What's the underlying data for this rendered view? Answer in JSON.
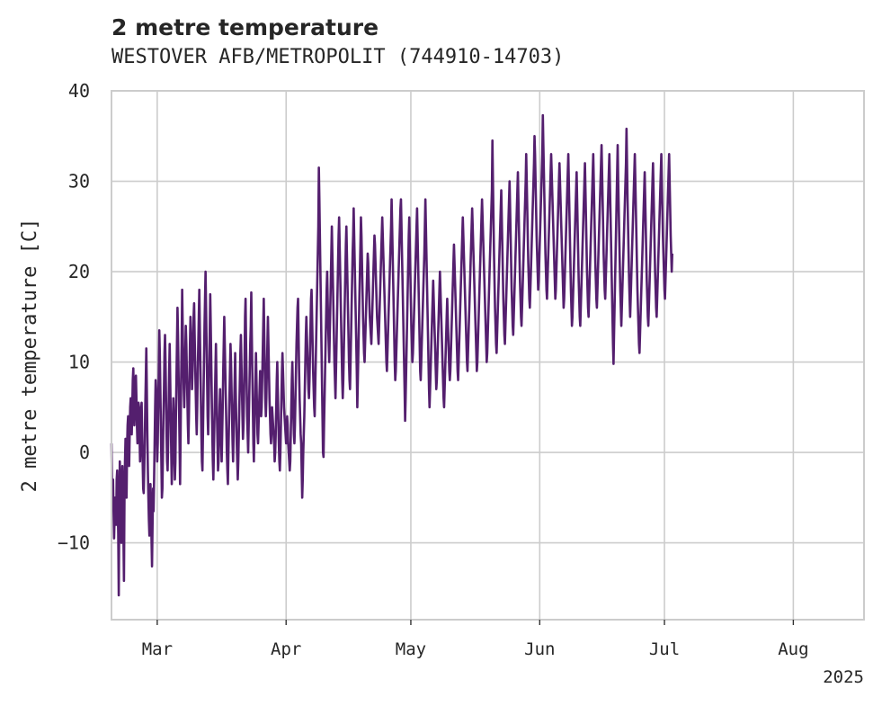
{
  "chart_data": {
    "type": "line",
    "title": "2 metre temperature",
    "subtitle": "WESTOVER AFB/METROPOLIT (744910-14703)",
    "xlabel": "",
    "ylabel": "2 metre temperature [C]",
    "x_start": "2025-02-18",
    "x_end": "2025-08-18",
    "xlim": [
      "2025-02-18",
      "2025-08-18"
    ],
    "ylim": [
      -18.5,
      40
    ],
    "y_ticks": [
      -10,
      0,
      10,
      20,
      30,
      40
    ],
    "x_ticks": [
      {
        "label": "Mar",
        "date": "2025-03-01"
      },
      {
        "label": "Apr",
        "date": "2025-04-01"
      },
      {
        "label": "May",
        "date": "2025-05-01"
      },
      {
        "label": "Jun",
        "date": "2025-06-01"
      },
      {
        "label": "Jul",
        "date": "2025-07-01"
      },
      {
        "label": "Aug",
        "date": "2025-08-01"
      }
    ],
    "x_offset_label": "2025",
    "grid": true,
    "line_color": "#541f6e",
    "grid_color": "#cccccc",
    "series": [
      {
        "name": "",
        "x_step_hours": 3,
        "values": [
          1.0,
          -3.5,
          -4.5,
          -3.0,
          -6.5,
          -9.5,
          -7.0,
          -5.0,
          -6.5,
          -8.0,
          -3.0,
          -2.0,
          -6.0,
          -9.0,
          -15.8,
          -6.0,
          -1.0,
          -4.0,
          -8.0,
          -10.0,
          -3.5,
          -1.5,
          -4.0,
          -9.0,
          -14.2,
          -5.0,
          -1.0,
          1.5,
          -2.0,
          -5.0,
          0.5,
          3.0,
          4.0,
          1.0,
          -1.5,
          2.0,
          5.0,
          6.0,
          4.0,
          2.0,
          5.0,
          8.0,
          9.3,
          6.0,
          3.0,
          5.0,
          8.0,
          8.5,
          6.0,
          3.0,
          1.0,
          3.0,
          5.5,
          5.0,
          2.0,
          -1.0,
          1.0,
          4.5,
          5.5,
          2.0,
          -1.0,
          -4.0,
          -4.5,
          -2.0,
          1.0,
          5.0,
          8.0,
          11.5,
          7.0,
          2.0,
          -2.0,
          -5.0,
          -7.5,
          -9.2,
          -7.0,
          -3.5,
          -6.0,
          -9.5,
          -12.6,
          -8.0,
          -4.0,
          -6.5,
          -3.0,
          1.0,
          5.0,
          8.0,
          7.0,
          3.0,
          -1.0,
          1.0,
          5.0,
          9.0,
          13.5,
          11.0,
          7.0,
          3.0,
          -1.0,
          -5.0,
          -4.0,
          0.0,
          4.0,
          7.0,
          11.0,
          13.0,
          10.0,
          6.0,
          2.0,
          -1.0,
          -2.0,
          1.0,
          5.0,
          9.0,
          12.0,
          8.0,
          4.0,
          0.0,
          -3.5,
          -1.0,
          3.0,
          6.0,
          4.0,
          0.0,
          -3.0,
          -1.0,
          4.0,
          8.0,
          12.0,
          16.0,
          13.0,
          9.0,
          5.0,
          1.0,
          -3.5,
          2.0,
          8.0,
          12.0,
          18.0,
          14.0,
          10.0,
          7.0,
          5.0,
          8.0,
          11.0,
          14.0,
          12.0,
          9.0,
          6.0,
          3.0,
          1.0,
          4.0,
          8.0,
          12.0,
          15.0,
          13.0,
          10.0,
          7.0,
          9.0,
          12.0,
          15.0,
          16.5,
          13.0,
          10.0,
          7.0,
          4.0,
          2.0,
          5.0,
          9.0,
          12.0,
          15.0,
          18.0,
          14.0,
          10.0,
          6.0,
          2.0,
          -1.0,
          -2.0,
          2.0,
          6.0,
          10.0,
          14.0,
          17.0,
          20.0,
          16.0,
          12.0,
          8.0,
          4.0,
          2.0,
          5.0,
          9.0,
          13.0,
          17.5,
          14.0,
          10.0,
          6.0,
          2.0,
          -1.0,
          -3.0,
          0.0,
          3.0,
          6.0,
          9.0,
          12.0,
          8.0,
          4.0,
          1.0,
          -2.0,
          -1.0,
          2.0,
          5.0,
          7.0,
          4.0,
          1.0,
          -1.0,
          2.0,
          5.0,
          9.0,
          12.0,
          15.0,
          12.0,
          9.0,
          6.0,
          3.0,
          0.0,
          -2.0,
          -3.5,
          0.0,
          3.0,
          6.0,
          9.0,
          12.0,
          10.0,
          7.0,
          4.0,
          1.0,
          -1.0,
          2.0,
          5.0,
          8.0,
          11.0,
          7.0,
          4.0,
          1.0,
          -1.0,
          -3.0,
          -1.0,
          2.0,
          5.0,
          8.0,
          11.0,
          13.0,
          10.0,
          7.0,
          4.0,
          1.5,
          3.0,
          6.0,
          10.0,
          15.0,
          17.0,
          12.0,
          8.0,
          4.0,
          2.0,
          0.0,
          3.0,
          6.0,
          9.0,
          12.0,
          14.0,
          17.7,
          13.0,
          9.0,
          5.0,
          1.0,
          -1.0,
          2.0,
          5.0,
          8.0,
          11.0,
          8.0,
          5.0,
          2.0,
          1.0,
          3.0,
          5.0,
          7.0,
          9.0,
          6.0,
          4.0,
          5.0,
          8.0,
          11.0,
          14.0,
          17.0,
          13.0,
          9.0,
          6.0,
          4.0,
          6.0,
          9.0,
          12.0,
          15.0,
          12.0,
          9.0,
          6.0,
          4.0,
          2.0,
          1.0,
          3.0,
          5.0,
          4.0,
          3.0,
          2.0,
          1.0,
          -1.0,
          0.0,
          2.0,
          5.0,
          8.0,
          10.0,
          7.0,
          4.0,
          1.0,
          -1.0,
          -2.0,
          0.0,
          3.0,
          6.0,
          9.0,
          11.0,
          9.0,
          7.0,
          5.0,
          4.0,
          3.0,
          2.0,
          1.0,
          2.0,
          4.0,
          3.0,
          1.0,
          0.0,
          -1.0,
          -2.0,
          -1.0,
          2.0,
          5.0,
          8.0,
          10.0,
          7.0,
          4.0,
          2.0,
          1.0,
          3.0,
          6.0,
          9.0,
          12.0,
          14.0,
          16.0,
          17.0,
          13.0,
          9.0,
          6.0,
          4.0,
          2.0,
          1.0,
          -2.0,
          -5.0,
          -3.0,
          0.0,
          2.0,
          4.0,
          7.0,
          10.0,
          13.0,
          15.0,
          13.0,
          11.0,
          9.0,
          7.0,
          6.0,
          8.0,
          11.0,
          14.0,
          17.0,
          18.0,
          15.0,
          12.0,
          9.0,
          7.0,
          5.0,
          4.0,
          7.0,
          10.0,
          13.0,
          16.0,
          19.0,
          22.0,
          25.0,
          31.5,
          28.0,
          24.0,
          20.0,
          16.0,
          12.0,
          8.0,
          4.0,
          0.0,
          -0.5,
          3.0,
          6.0,
          9.0,
          12.0,
          15.0,
          18.0,
          20.0,
          17.0,
          14.0,
          12.0,
          10.0,
          13.0,
          16.0,
          19.0,
          22.0,
          25.0,
          22.0,
          19.0,
          16.0,
          13.0,
          10.0,
          8.0,
          6.0,
          9.0,
          12.0,
          15.0,
          18.0,
          21.0,
          24.0,
          26.0,
          23.0,
          20.0,
          17.0,
          14.0,
          11.0,
          8.0,
          6.0,
          8.0,
          11.0,
          14.0,
          17.0,
          20.0,
          23.0,
          25.0,
          22.0,
          19.0,
          16.0,
          13.0,
          10.0,
          8.0,
          7.0,
          10.0,
          13.0,
          16.0,
          19.0,
          22.0,
          24.0,
          27.0,
          24.0,
          21.0,
          18.0,
          15.0,
          12.0,
          9.0,
          5.0,
          8.0,
          11.0,
          14.0,
          17.0,
          20.0,
          23.0,
          26.0,
          24.0,
          21.0,
          18.0,
          15.0,
          13.0,
          11.0,
          10.0,
          12.0,
          14.0,
          16.0,
          18.0,
          20.0,
          22.0,
          21.0,
          19.0,
          17.0,
          15.0,
          14.0,
          13.0,
          12.0,
          14.0,
          16.0,
          18.0,
          20.0,
          22.0,
          24.0,
          23.0,
          21.0,
          19.0,
          17.0,
          15.0,
          14.0,
          13.0,
          12.0,
          14.0,
          16.0,
          18.0,
          20.0,
          22.0,
          24.0,
          26.0,
          24.0,
          22.0,
          20.0,
          18.0,
          16.0,
          14.0,
          12.0,
          10.0,
          9.0,
          11.0,
          13.0,
          15.0,
          17.0,
          19.0,
          21.0,
          23.0,
          25.0,
          28.0,
          25.0,
          22.0,
          19.0,
          16.0,
          13.0,
          10.0,
          8.0,
          9.0,
          11.0,
          13.0,
          15.0,
          17.0,
          19.0,
          21.0,
          23.0,
          25.0,
          27.0,
          28.0,
          25.0,
          22.0,
          19.0,
          16.0,
          13.0,
          10.0,
          7.0,
          3.5,
          6.0,
          9.0,
          12.0,
          15.0,
          18.0,
          21.0,
          24.0,
          26.0,
          23.0,
          20.0,
          17.0,
          14.0,
          12.0,
          10.0,
          11.0,
          13.0,
          15.0,
          17.0,
          19.0,
          21.0,
          23.0,
          25.0,
          27.0,
          24.0,
          21.0,
          18.0,
          15.0,
          12.0,
          9.0,
          8.0,
          10.0,
          12.0,
          14.0,
          16.0,
          18.0,
          20.0,
          22.0,
          25.0,
          28.0,
          25.0,
          22.0,
          19.0,
          16.0,
          13.0,
          10.0,
          7.0,
          5.0,
          7.0,
          9.0,
          11.0,
          13.0,
          15.0,
          17.0,
          19.0,
          17.0,
          15.0,
          13.0,
          11.0,
          9.0,
          7.0,
          8.0,
          10.0,
          12.0,
          14.0,
          16.0,
          18.0,
          20.0,
          18.0,
          16.0,
          14.0,
          12.0,
          10.0,
          8.0,
          6.0,
          5.0,
          7.0,
          9.0,
          11.0,
          13.0,
          15.0,
          17.0,
          15.0,
          13.0,
          11.0,
          9.0,
          8.0,
          9.0,
          11.0,
          13.0,
          15.0,
          17.0,
          19.0,
          21.0,
          23.0,
          21.0,
          19.0,
          17.0,
          15.0,
          13.0,
          11.0,
          9.0,
          8.0,
          10.0,
          12.0,
          14.0,
          16.0,
          18.0,
          20.0,
          22.0,
          24.0,
          26.0,
          24.0,
          22.0,
          20.0,
          18.0,
          16.0,
          14.0,
          12.0,
          10.0,
          9.0,
          11.0,
          13.0,
          15.0,
          17.0,
          19.0,
          21.0,
          23.0,
          25.0,
          27.0,
          25.0,
          23.0,
          21.0,
          19.0,
          17.0,
          15.0,
          13.0,
          11.0,
          9.0,
          10.0,
          12.0,
          14.0,
          16.0,
          18.0,
          20.0,
          22.0,
          24.0,
          26.0,
          28.0,
          26.0,
          24.0,
          22.0,
          20.0,
          18.0,
          16.0,
          14.0,
          12.0,
          10.0,
          11.0,
          13.0,
          15.0,
          17.0,
          19.0,
          21.0,
          23.0,
          25.0,
          27.0,
          29.0,
          34.5,
          30.0,
          26.0,
          22.0,
          19.0,
          16.0,
          14.0,
          12.0,
          11.0,
          13.0,
          15.0,
          17.0,
          19.0,
          21.0,
          23.0,
          25.0,
          27.0,
          29.0,
          26.0,
          23.0,
          20.0,
          17.0,
          15.0,
          13.0,
          12.0,
          14.0,
          16.0,
          18.0,
          20.0,
          22.0,
          24.0,
          26.0,
          28.0,
          30.0,
          27.0,
          24.0,
          21.0,
          18.0,
          16.0,
          14.0,
          13.0,
          15.0,
          17.0,
          19.0,
          21.0,
          23.0,
          25.0,
          27.0,
          29.0,
          31.0,
          28.0,
          25.0,
          22.0,
          19.0,
          17.0,
          15.0,
          14.0,
          16.0,
          18.0,
          20.0,
          22.0,
          24.0,
          26.0,
          28.0,
          30.0,
          33.0,
          30.0,
          27.0,
          24.0,
          21.0,
          19.0,
          17.0,
          16.0,
          18.0,
          20.0,
          22.0,
          24.0,
          26.0,
          28.0,
          30.0,
          32.0,
          35.0,
          33.0,
          30.0,
          27.0,
          24.0,
          22.0,
          20.0,
          18.0,
          19.0,
          21.0,
          23.0,
          25.0,
          27.0,
          29.0,
          31.0,
          33.0,
          37.3,
          34.0,
          31.0,
          28.0,
          25.0,
          22.0,
          20.0,
          18.0,
          17.0,
          19.0,
          21.0,
          23.0,
          25.0,
          27.0,
          29.0,
          31.0,
          33.0,
          31.0,
          29.0,
          27.0,
          25.0,
          23.0,
          21.0,
          19.0,
          17.0,
          18.0,
          20.0,
          22.0,
          24.0,
          26.0,
          28.0,
          30.0,
          32.0,
          30.0,
          28.0,
          26.0,
          24.0,
          22.0,
          20.0,
          18.0,
          16.0,
          17.0,
          19.0,
          21.0,
          23.0,
          25.0,
          27.0,
          29.0,
          31.0,
          33.0,
          30.0,
          27.0,
          24.0,
          21.0,
          18.0,
          16.0,
          14.0,
          15.0,
          17.0,
          19.0,
          21.0,
          23.0,
          25.0,
          27.0,
          29.0,
          31.0,
          28.0,
          25.0,
          22.0,
          19.0,
          17.0,
          15.0,
          14.0,
          16.0,
          18.0,
          20.0,
          22.0,
          24.0,
          26.0,
          28.0,
          30.0,
          32.0,
          29.0,
          26.0,
          23.0,
          20.0,
          18.0,
          16.0,
          15.0,
          17.0,
          19.0,
          21.0,
          23.0,
          25.0,
          27.0,
          29.0,
          31.0,
          33.0,
          30.0,
          27.0,
          24.0,
          21.0,
          19.0,
          17.0,
          16.0,
          18.0,
          20.0,
          22.0,
          24.0,
          26.0,
          28.0,
          30.0,
          32.0,
          34.0,
          31.0,
          28.0,
          25.0,
          22.0,
          20.0,
          18.0,
          17.0,
          19.0,
          21.0,
          23.0,
          25.0,
          27.0,
          29.0,
          31.0,
          33.0,
          30.0,
          27.0,
          24.0,
          21.0,
          18.0,
          15.0,
          12.0,
          9.8,
          13.0,
          16.0,
          19.0,
          22.0,
          25.0,
          28.0,
          31.0,
          34.0,
          30.0,
          27.0,
          24.0,
          21.0,
          18.0,
          16.0,
          14.0,
          16.0,
          18.0,
          20.0,
          22.0,
          24.0,
          26.0,
          28.0,
          30.0,
          32.0,
          35.8,
          32.0,
          28.0,
          25.0,
          22.0,
          19.0,
          17.0,
          15.0,
          17.0,
          19.0,
          21.0,
          23.0,
          25.0,
          27.0,
          29.0,
          31.0,
          33.0,
          30.0,
          27.0,
          24.0,
          21.0,
          18.0,
          16.0,
          14.0,
          12.0,
          11.0,
          13.0,
          15.0,
          17.0,
          19.0,
          21.0,
          23.0,
          25.0,
          27.0,
          29.0,
          31.0,
          28.0,
          25.0,
          22.0,
          19.0,
          17.0,
          15.0,
          14.0,
          16.0,
          18.0,
          20.0,
          22.0,
          24.0,
          26.0,
          28.0,
          30.0,
          32.0,
          29.0,
          26.0,
          23.0,
          20.0,
          18.0,
          16.0,
          15.0,
          17.0,
          19.0,
          21.0,
          23.0,
          25.0,
          27.0,
          29.0,
          31.0,
          33.0,
          30.0,
          27.0,
          24.0,
          22.0,
          20.0,
          18.0,
          17.0,
          19.0,
          21.0,
          23.0,
          25.0,
          27.0,
          29.0,
          31.0,
          33.0,
          30.0,
          27.0,
          24.0,
          22.0,
          20.0,
          22.0
        ]
      }
    ]
  }
}
